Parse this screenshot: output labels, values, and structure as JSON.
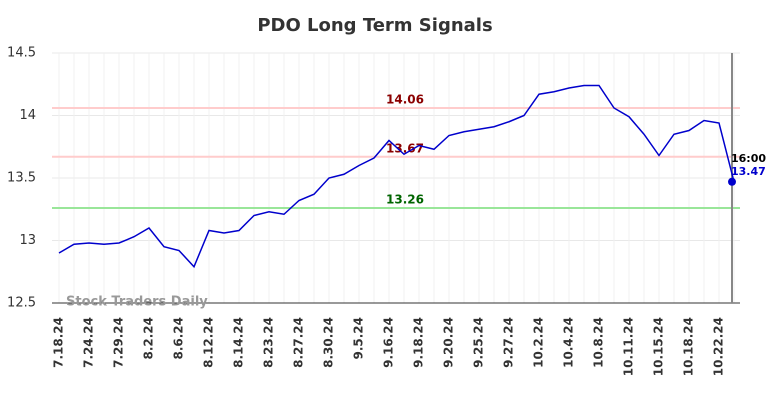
{
  "chart_data": {
    "type": "line",
    "title": "PDO Long Term Signals",
    "categories": [
      "7.18.24",
      null,
      "7.24.24",
      null,
      "7.29.24",
      null,
      "8.2.24",
      null,
      "8.6.24",
      null,
      "8.12.24",
      null,
      "8.14.24",
      null,
      "8.23.24",
      null,
      "8.27.24",
      null,
      "8.30.24",
      null,
      "9.5.24",
      null,
      "9.16.24",
      null,
      "9.18.24",
      null,
      "9.20.24",
      null,
      "9.25.24",
      null,
      "9.27.24",
      null,
      "10.2.24",
      null,
      "10.4.24",
      null,
      "10.8.24",
      null,
      "10.11.24",
      null,
      "10.15.24",
      null,
      "10.18.24",
      null,
      "10.22.24",
      null
    ],
    "values": [
      12.9,
      12.97,
      12.98,
      12.97,
      12.98,
      13.03,
      13.1,
      12.95,
      12.92,
      12.79,
      13.08,
      13.06,
      13.08,
      13.2,
      13.23,
      13.21,
      13.32,
      13.37,
      13.5,
      13.53,
      13.6,
      13.66,
      13.8,
      13.69,
      13.76,
      13.73,
      13.84,
      13.87,
      13.89,
      13.91,
      13.95,
      14.0,
      14.17,
      14.19,
      14.22,
      14.24,
      14.24,
      14.06,
      13.99,
      13.85,
      13.68,
      13.85,
      13.88,
      13.96,
      13.94,
      13.47
    ],
    "color": "#0000cc",
    "ylim": [
      12.5,
      14.5
    ],
    "yticks": [
      12.5,
      13,
      13.5,
      14,
      14.5
    ],
    "grid": true,
    "hlines": [
      {
        "value": 14.06,
        "line_color": "#ffcccc",
        "label_color": "#8b0000"
      },
      {
        "value": 13.67,
        "line_color": "#ffcccc",
        "label_color": "#8b0000"
      },
      {
        "value": 13.26,
        "line_color": "#99e699",
        "label_color": "#006400"
      }
    ],
    "last_time": "16:00",
    "watermark": "Stock Traders Daily"
  }
}
